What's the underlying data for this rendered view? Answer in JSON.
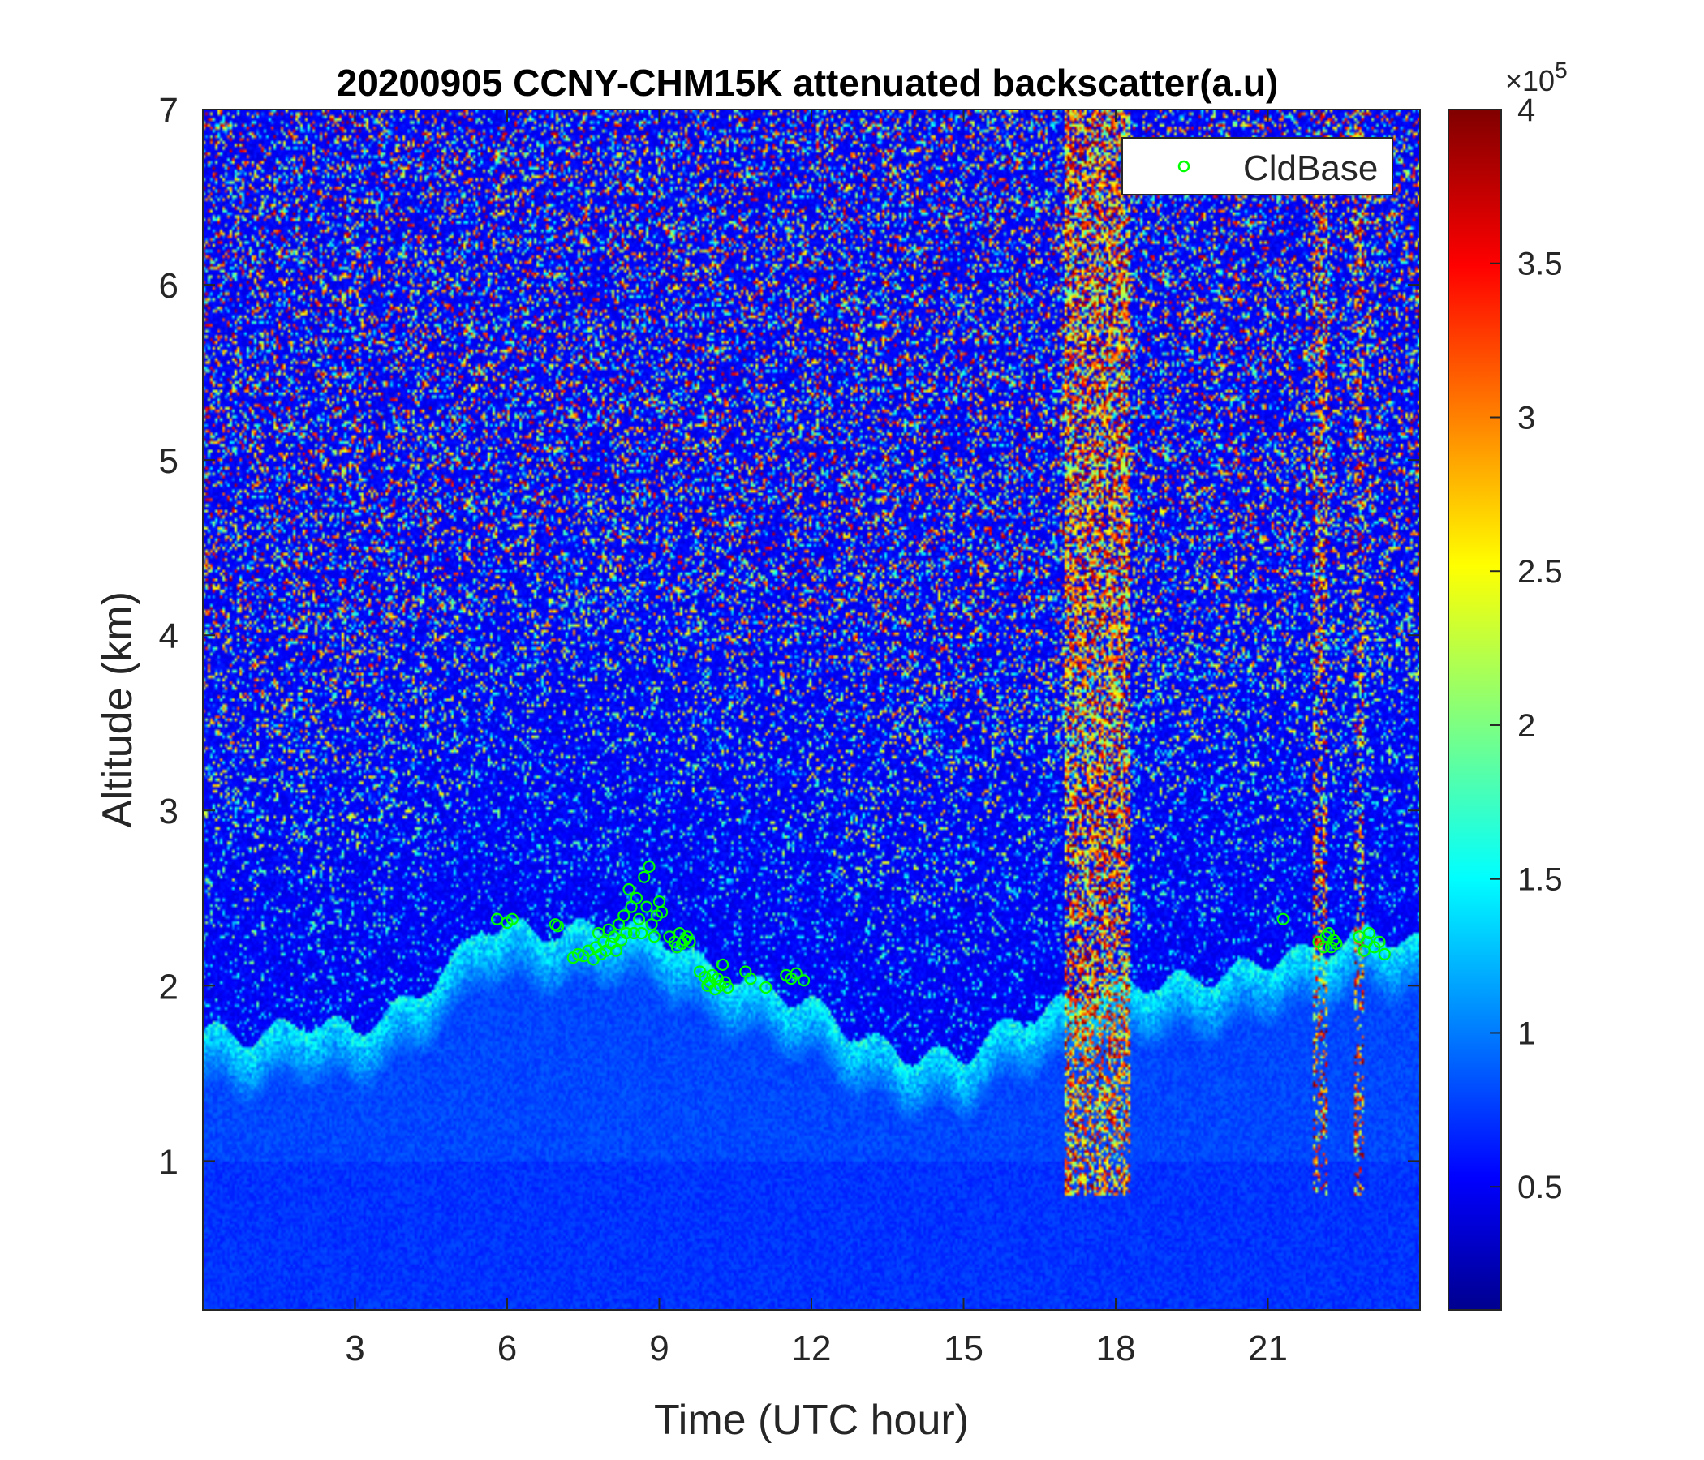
{
  "chart_data": {
    "type": "heatmap",
    "title": "20200905 CCNY-CHM15K attenuated backscatter(a.u)",
    "xlabel": "Time (UTC hour)",
    "ylabel": "Altitude (km)",
    "xlim": [
      0,
      24
    ],
    "ylim": [
      0.15,
      7
    ],
    "xticks": [
      3,
      6,
      9,
      12,
      15,
      18,
      21
    ],
    "yticks": [
      1,
      2,
      3,
      4,
      5,
      6,
      7
    ],
    "colormap": "jet",
    "colorbar": {
      "clim": [
        0.1,
        4
      ],
      "ticks": [
        0.5,
        1,
        1.5,
        2,
        2.5,
        3,
        3.5,
        4
      ],
      "exponent_base": "×10",
      "exponent": "5"
    },
    "legend": {
      "entries": [
        "CldBase"
      ],
      "location": "top-right"
    },
    "features": {
      "boundary_layer_top_km": [
        [
          0,
          1.75
        ],
        [
          1,
          1.7
        ],
        [
          2,
          1.8
        ],
        [
          3,
          1.75
        ],
        [
          4,
          1.9
        ],
        [
          5,
          2.15
        ],
        [
          5.5,
          2.35
        ],
        [
          7,
          2.3
        ],
        [
          8,
          2.35
        ],
        [
          9,
          2.3
        ],
        [
          10,
          2.1
        ],
        [
          11,
          2.0
        ],
        [
          12,
          1.9
        ],
        [
          13,
          1.7
        ],
        [
          14,
          1.6
        ],
        [
          15,
          1.6
        ],
        [
          16,
          1.8
        ],
        [
          18,
          2.0
        ],
        [
          20,
          2.05
        ],
        [
          21,
          2.15
        ],
        [
          22,
          2.2
        ],
        [
          23,
          2.3
        ],
        [
          24,
          2.25
        ]
      ],
      "noise_bands_hours": [
        [
          17.0,
          18.3
        ],
        [
          21.9,
          22.2
        ],
        [
          22.7,
          22.9
        ]
      ]
    },
    "series": [
      {
        "name": "CldBase",
        "marker": "circle",
        "color": "#00ff00",
        "points": [
          [
            5.8,
            2.38
          ],
          [
            6.0,
            2.36
          ],
          [
            6.1,
            2.38
          ],
          [
            6.95,
            2.35
          ],
          [
            7.0,
            2.34
          ],
          [
            7.3,
            2.16
          ],
          [
            7.4,
            2.18
          ],
          [
            7.5,
            2.17
          ],
          [
            7.6,
            2.2
          ],
          [
            7.7,
            2.15
          ],
          [
            7.75,
            2.22
          ],
          [
            7.8,
            2.3
          ],
          [
            7.85,
            2.18
          ],
          [
            7.9,
            2.25
          ],
          [
            7.95,
            2.2
          ],
          [
            8.0,
            2.32
          ],
          [
            8.05,
            2.24
          ],
          [
            8.1,
            2.28
          ],
          [
            8.15,
            2.2
          ],
          [
            8.2,
            2.35
          ],
          [
            8.25,
            2.26
          ],
          [
            8.3,
            2.4
          ],
          [
            8.35,
            2.3
          ],
          [
            8.4,
            2.55
          ],
          [
            8.45,
            2.45
          ],
          [
            8.5,
            2.3
          ],
          [
            8.55,
            2.5
          ],
          [
            8.6,
            2.38
          ],
          [
            8.65,
            2.3
          ],
          [
            8.7,
            2.62
          ],
          [
            8.75,
            2.45
          ],
          [
            8.8,
            2.68
          ],
          [
            8.85,
            2.35
          ],
          [
            8.9,
            2.28
          ],
          [
            8.95,
            2.4
          ],
          [
            9.0,
            2.48
          ],
          [
            9.05,
            2.42
          ],
          [
            9.2,
            2.28
          ],
          [
            9.3,
            2.25
          ],
          [
            9.35,
            2.22
          ],
          [
            9.4,
            2.3
          ],
          [
            9.45,
            2.24
          ],
          [
            9.5,
            2.26
          ],
          [
            9.55,
            2.28
          ],
          [
            9.6,
            2.25
          ],
          [
            9.8,
            2.08
          ],
          [
            9.9,
            2.05
          ],
          [
            9.95,
            2.0
          ],
          [
            10.0,
            2.02
          ],
          [
            10.05,
            2.06
          ],
          [
            10.1,
            1.98
          ],
          [
            10.15,
            2.04
          ],
          [
            10.2,
            2.0
          ],
          [
            10.25,
            2.12
          ],
          [
            10.3,
            2.02
          ],
          [
            10.35,
            1.99
          ],
          [
            10.7,
            2.08
          ],
          [
            10.8,
            2.04
          ],
          [
            11.1,
            1.99
          ],
          [
            11.5,
            2.06
          ],
          [
            11.6,
            2.04
          ],
          [
            11.7,
            2.07
          ],
          [
            11.85,
            2.03
          ],
          [
            21.3,
            2.38
          ],
          [
            22.0,
            2.25
          ],
          [
            22.1,
            2.22
          ],
          [
            22.15,
            2.28
          ],
          [
            22.2,
            2.3
          ],
          [
            22.25,
            2.22
          ],
          [
            22.3,
            2.26
          ],
          [
            22.35,
            2.24
          ],
          [
            22.8,
            2.28
          ],
          [
            22.9,
            2.2
          ],
          [
            22.95,
            2.25
          ],
          [
            23.0,
            2.3
          ],
          [
            23.1,
            2.22
          ],
          [
            23.2,
            2.25
          ],
          [
            23.3,
            2.18
          ]
        ]
      }
    ]
  }
}
